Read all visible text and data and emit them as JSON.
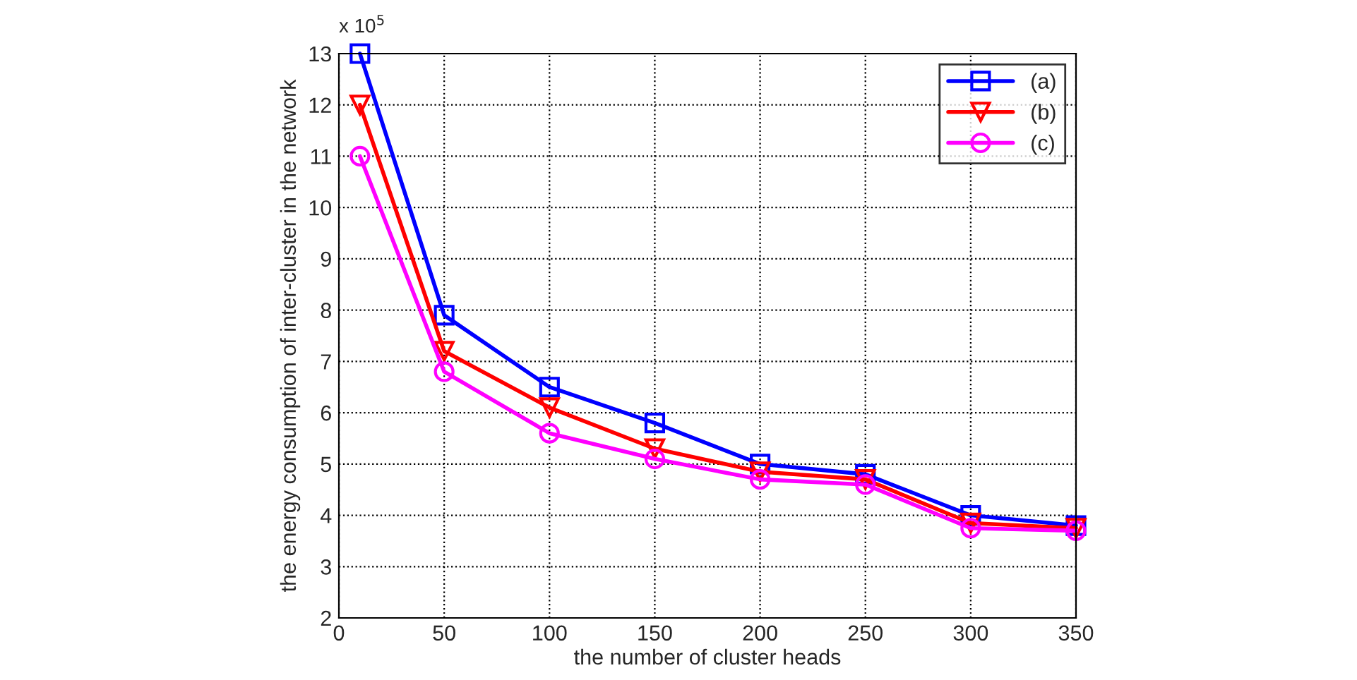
{
  "chart_data": {
    "type": "line",
    "xlabel": "the number of cluster heads",
    "ylabel": "the energy consumption of inter-cluster in the network",
    "annotations": [
      "x 10$^{5}$"
    ],
    "x": [
      10,
      50,
      100,
      150,
      200,
      250,
      300,
      350
    ],
    "series": [
      {
        "name": "(a)",
        "color": "#0000ff",
        "marker": "square",
        "values": [
          13,
          7.9,
          6.5,
          5.8,
          5.0,
          4.8,
          4.0,
          3.8
        ]
      },
      {
        "name": "(b)",
        "color": "#ff0000",
        "marker": "triangle",
        "values": [
          12,
          7.2,
          6.1,
          5.3,
          4.85,
          4.7,
          3.85,
          3.75
        ]
      },
      {
        "name": "(c)",
        "color": "#ff00ff",
        "marker": "circle",
        "values": [
          11,
          6.8,
          5.6,
          5.1,
          4.7,
          4.6,
          3.75,
          3.7
        ]
      }
    ],
    "xlim": [
      0,
      350
    ],
    "xticks": [
      0,
      50,
      100,
      150,
      200,
      250,
      300,
      350
    ],
    "ylim": [
      2,
      13
    ],
    "yticks": [
      2,
      3,
      4,
      5,
      6,
      7,
      8,
      9,
      10,
      11,
      12,
      13
    ],
    "grid": true,
    "legend": "top right",
    "line_style": "solid"
  }
}
